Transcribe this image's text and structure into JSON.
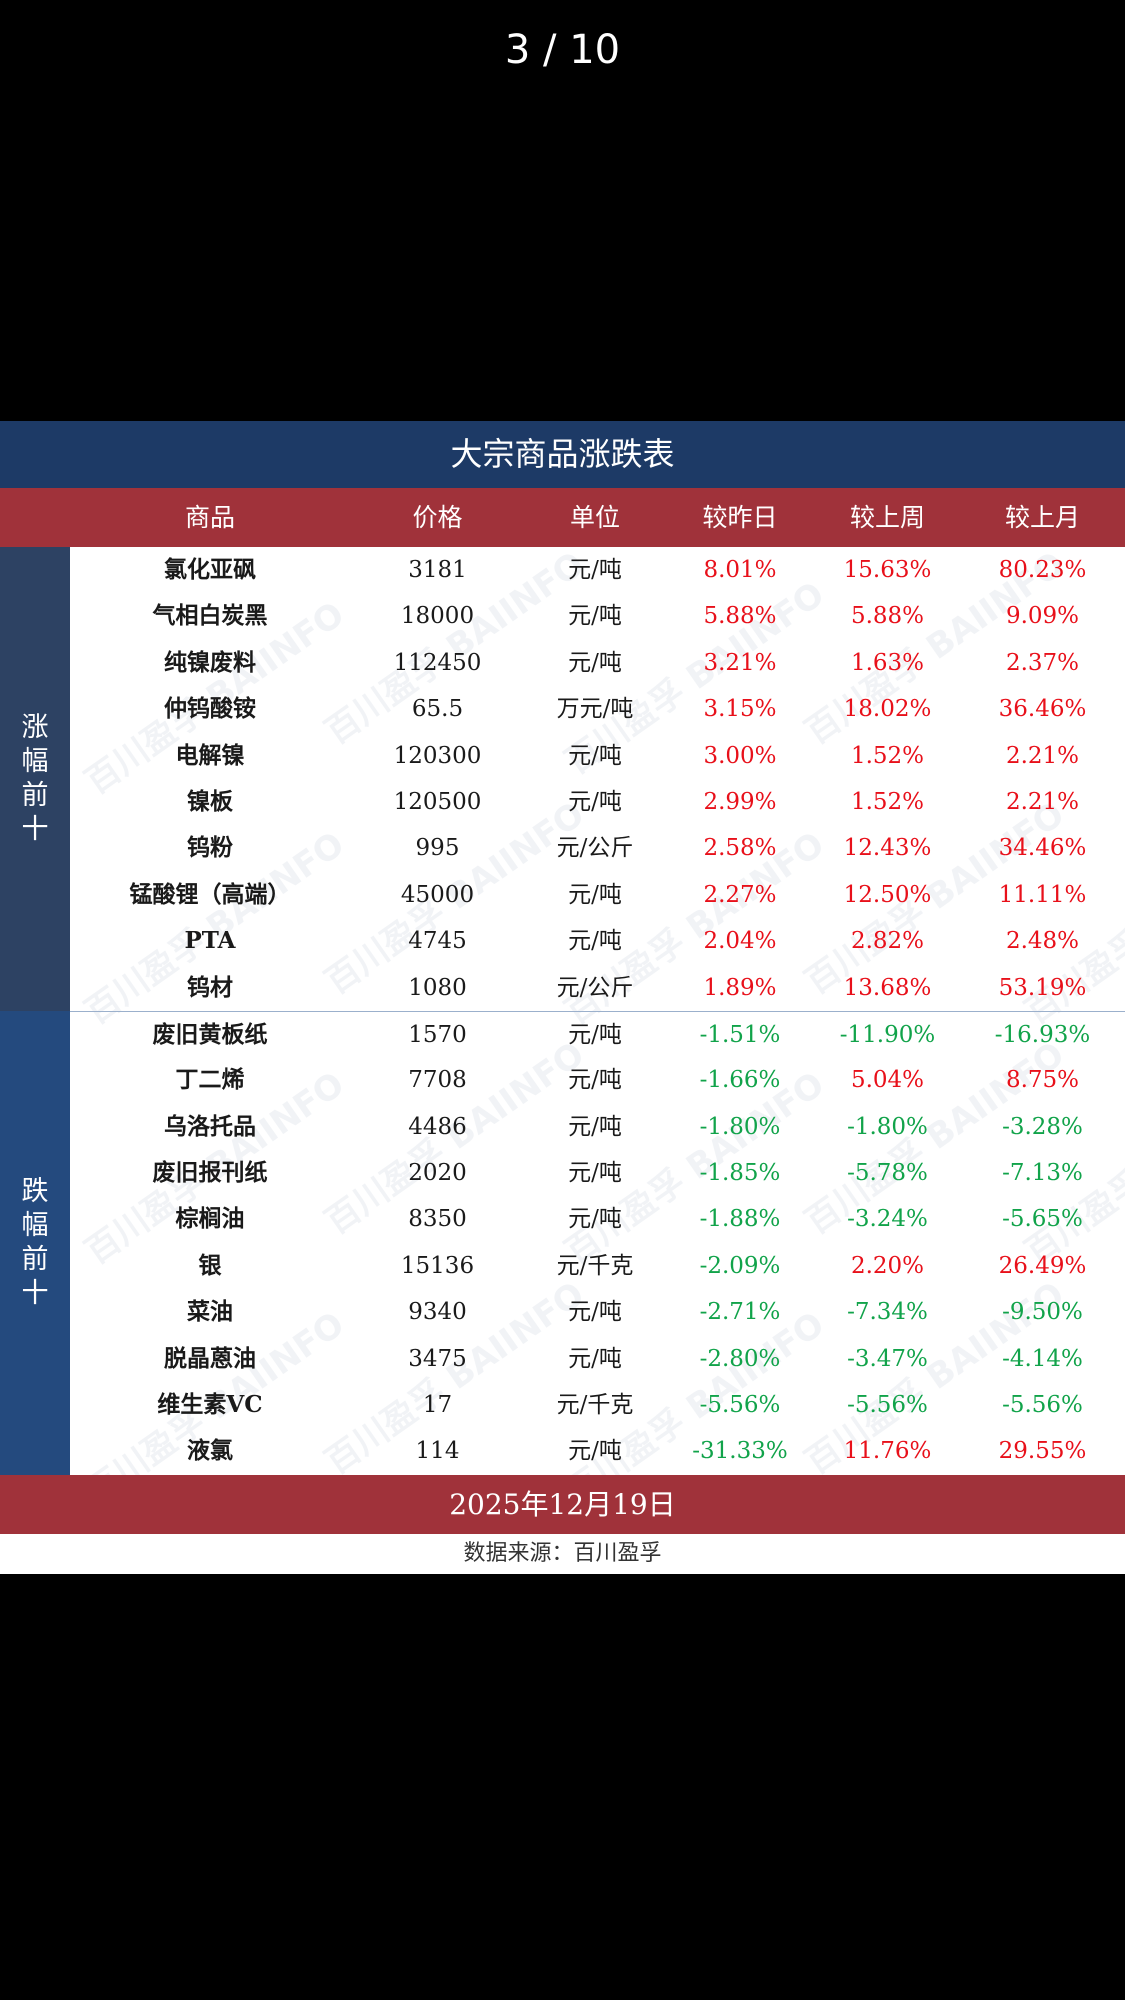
{
  "viewer": {
    "page_counter": "3 / 10"
  },
  "table": {
    "title": "大宗商品涨跌表",
    "headers": [
      "商品",
      "价格",
      "单位",
      "较昨日",
      "较上周",
      "较上月"
    ],
    "group_top_label": [
      "涨",
      "幅",
      "前",
      "十"
    ],
    "group_bottom_label": [
      "跌",
      "幅",
      "前",
      "十"
    ],
    "watermark_text": "百川盈孚 BAIINFO",
    "rows": [
      {
        "name": "氯化亚砜",
        "price": "3181",
        "unit": "元/吨",
        "day": "8.01%",
        "week": "15.63%",
        "month": "80.23%"
      },
      {
        "name": "气相白炭黑",
        "price": "18000",
        "unit": "元/吨",
        "day": "5.88%",
        "week": "5.88%",
        "month": "9.09%"
      },
      {
        "name": "纯镍废料",
        "price": "112450",
        "unit": "元/吨",
        "day": "3.21%",
        "week": "1.63%",
        "month": "2.37%"
      },
      {
        "name": "仲钨酸铵",
        "price": "65.5",
        "unit": "万元/吨",
        "day": "3.15%",
        "week": "18.02%",
        "month": "36.46%"
      },
      {
        "name": "电解镍",
        "price": "120300",
        "unit": "元/吨",
        "day": "3.00%",
        "week": "1.52%",
        "month": "2.21%"
      },
      {
        "name": "镍板",
        "price": "120500",
        "unit": "元/吨",
        "day": "2.99%",
        "week": "1.52%",
        "month": "2.21%"
      },
      {
        "name": "钨粉",
        "price": "995",
        "unit": "元/公斤",
        "day": "2.58%",
        "week": "12.43%",
        "month": "34.46%"
      },
      {
        "name": "锰酸锂（高端）",
        "price": "45000",
        "unit": "元/吨",
        "day": "2.27%",
        "week": "12.50%",
        "month": "11.11%"
      },
      {
        "name": "PTA",
        "price": "4745",
        "unit": "元/吨",
        "day": "2.04%",
        "week": "2.82%",
        "month": "2.48%"
      },
      {
        "name": "钨材",
        "price": "1080",
        "unit": "元/公斤",
        "day": "1.89%",
        "week": "13.68%",
        "month": "53.19%"
      },
      {
        "name": "废旧黄板纸",
        "price": "1570",
        "unit": "元/吨",
        "day": "-1.51%",
        "week": "-11.90%",
        "month": "-16.93%"
      },
      {
        "name": "丁二烯",
        "price": "7708",
        "unit": "元/吨",
        "day": "-1.66%",
        "week": "5.04%",
        "month": "8.75%"
      },
      {
        "name": "乌洛托品",
        "price": "4486",
        "unit": "元/吨",
        "day": "-1.80%",
        "week": "-1.80%",
        "month": "-3.28%"
      },
      {
        "name": "废旧报刊纸",
        "price": "2020",
        "unit": "元/吨",
        "day": "-1.85%",
        "week": "-5.78%",
        "month": "-7.13%"
      },
      {
        "name": "棕榈油",
        "price": "8350",
        "unit": "元/吨",
        "day": "-1.88%",
        "week": "-3.24%",
        "month": "-5.65%"
      },
      {
        "name": "银",
        "price": "15136",
        "unit": "元/千克",
        "day": "-2.09%",
        "week": "2.20%",
        "month": "26.49%"
      },
      {
        "name": "菜油",
        "price": "9340",
        "unit": "元/吨",
        "day": "-2.71%",
        "week": "-7.34%",
        "month": "-9.50%"
      },
      {
        "name": "脱晶蒽油",
        "price": "3475",
        "unit": "元/吨",
        "day": "-2.80%",
        "week": "-3.47%",
        "month": "-4.14%"
      },
      {
        "name": "维生素VC",
        "price": "17",
        "unit": "元/千克",
        "day": "-5.56%",
        "week": "-5.56%",
        "month": "-5.56%"
      },
      {
        "name": "液氯",
        "price": "114",
        "unit": "元/吨",
        "day": "-31.33%",
        "week": "11.76%",
        "month": "29.55%"
      }
    ],
    "date": "2025年12月19日",
    "source": "数据来源：百川盈孚"
  },
  "colors": {
    "title_bg": "#1d3a66",
    "header_bg": "#a0323a",
    "rise": "#e8101a",
    "fall": "#11a34a"
  }
}
